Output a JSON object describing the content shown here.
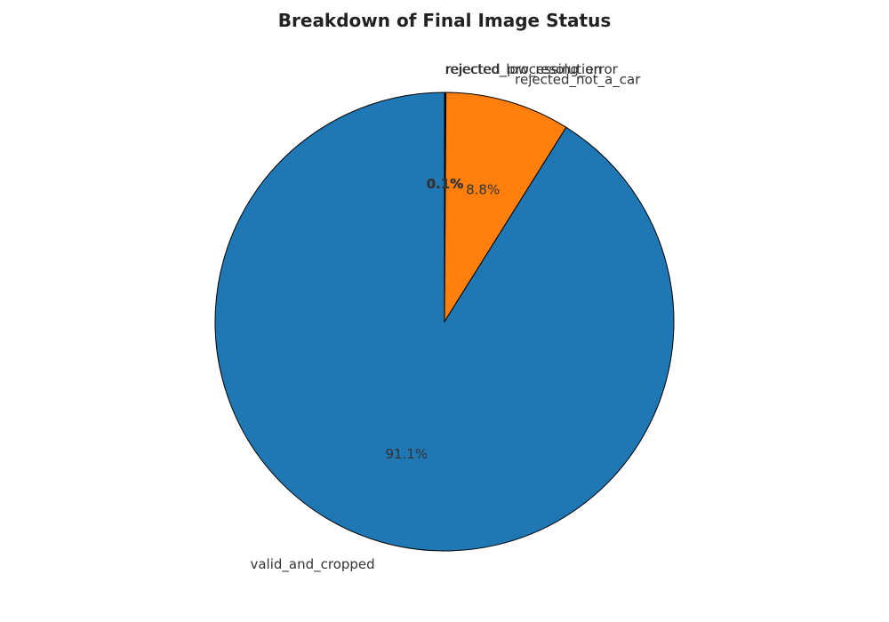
{
  "chart_data": {
    "type": "pie",
    "title": "Breakdown of Final Image Status",
    "start_angle_deg": 90,
    "direction": "clockwise",
    "slices": [
      {
        "label": "rejected_low_resolution",
        "value": 0.05,
        "pct_label": "0.1%",
        "color": "#2ca02c"
      },
      {
        "label": "rejected_processing_error",
        "value": 0.05,
        "pct_label": "0.1%",
        "color": "#d62728"
      },
      {
        "label": "rejected_not_a_car",
        "value": 8.8,
        "pct_label": "8.8%",
        "color": "#ff7f0e"
      },
      {
        "label": "valid_and_cropped",
        "value": 91.1,
        "pct_label": "91.1%",
        "color": "#1f77b4"
      }
    ]
  }
}
